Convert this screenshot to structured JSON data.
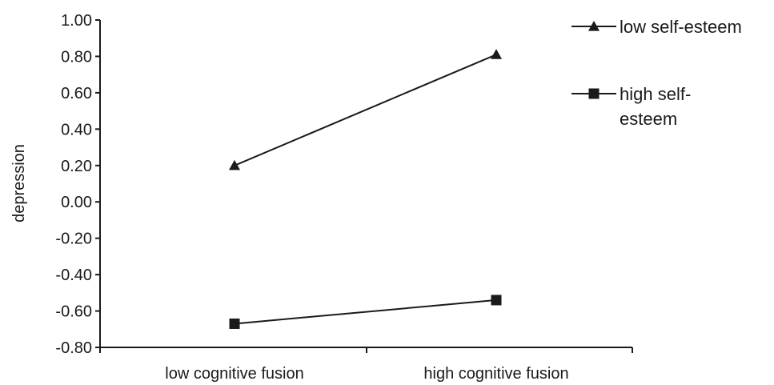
{
  "chart_data": {
    "type": "line",
    "categories": [
      "low cognitive fusion",
      "high cognitive fusion"
    ],
    "series": [
      {
        "name": "low self-esteem",
        "marker": "triangle",
        "values": [
          0.2,
          0.81
        ]
      },
      {
        "name": "high self-esteem",
        "legend_lines": [
          "high self-",
          "esteem"
        ],
        "marker": "square",
        "values": [
          -0.67,
          -0.54
        ]
      }
    ],
    "y_ticks": [
      "1.00",
      "0.80",
      "0.60",
      "0.40",
      "0.20",
      "0.00",
      "-0.20",
      "-0.40",
      "-0.60",
      "-0.80"
    ],
    "ylim": [
      -0.8,
      1.0
    ],
    "xlabel": "",
    "ylabel": "depression",
    "grid": false,
    "legend_position": "right",
    "colors": {
      "line": "#1a1a1a",
      "axis": "#1a1a1a"
    }
  }
}
